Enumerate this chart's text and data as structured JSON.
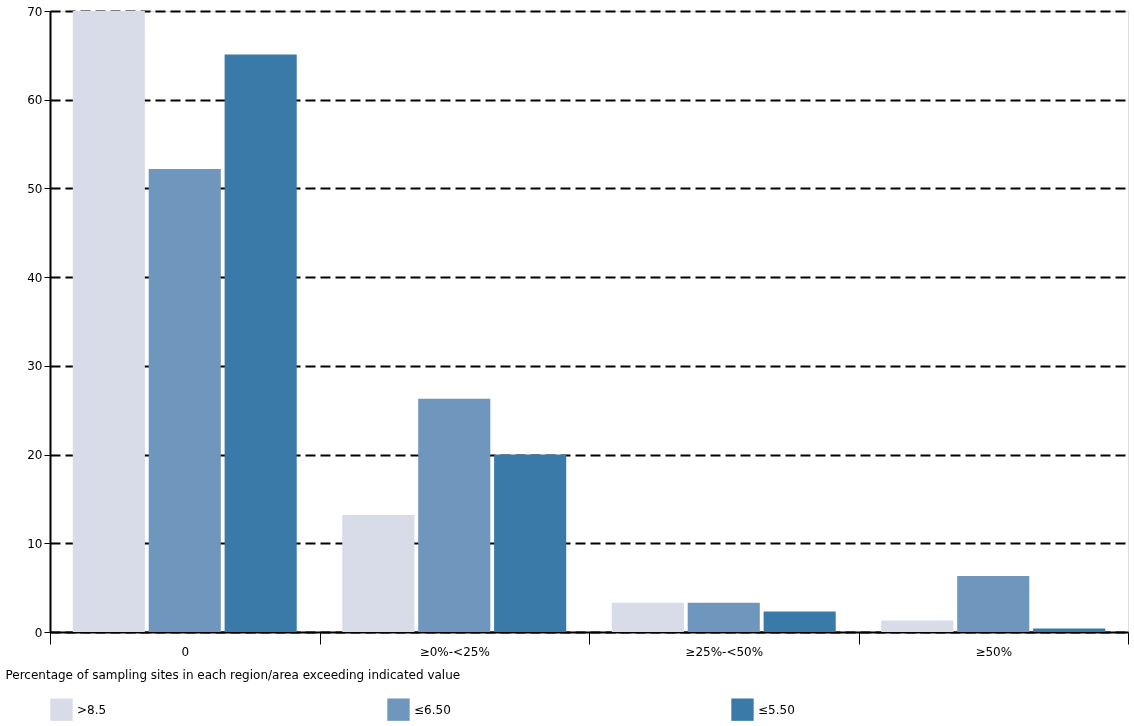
{
  "chart_data": {
    "type": "bar",
    "xlabel": "Percentage of sampling sites in each region/area exceeding indicated value",
    "categories": [
      "0",
      "≥0%-<25%",
      "≥25%-<50%",
      "≥50%"
    ],
    "series": [
      {
        "name": ">8.5",
        "color": "#d8dce8",
        "values": [
          70,
          13.2,
          3.3,
          1.3
        ]
      },
      {
        "name": "≤6.50",
        "color": "#6f97bd",
        "values": [
          52.2,
          26.3,
          3.3,
          6.3
        ]
      },
      {
        "name": "≤5.50",
        "color": "#3a7aa8",
        "values": [
          65.1,
          20.0,
          2.3,
          0.4
        ]
      }
    ],
    "ylim": [
      0,
      70
    ],
    "yticks": [
      0,
      10,
      20,
      30,
      40,
      50,
      60,
      70
    ],
    "grid": "y",
    "legend": "bottom"
  }
}
